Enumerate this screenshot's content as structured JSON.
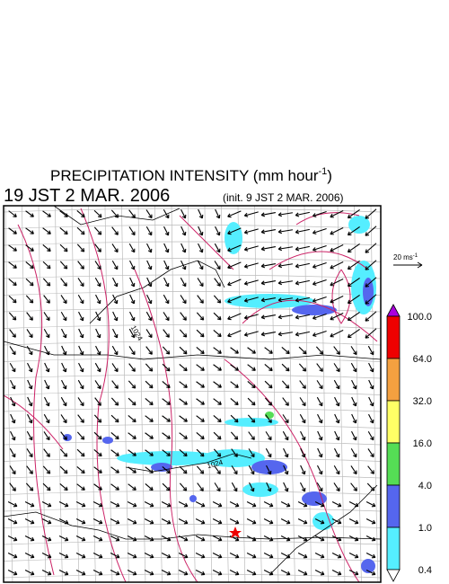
{
  "header": {
    "title": "PRECIPITATION INTENSITY (mm hour",
    "title_sup": "-1",
    "title_end": ")",
    "valid_time": "19 JST 2 MAR. 2006",
    "init_time": "(init. 9 JST 2 MAR. 2006)"
  },
  "wind_reference": {
    "label": "20 ms",
    "label_sup": "-1"
  },
  "colorbar": {
    "labels": [
      "100.0",
      "64.0",
      "32.0",
      "16.0",
      "4.0",
      "1.0",
      "0.4"
    ],
    "colors": [
      "#aa00dd",
      "#ee0000",
      "#f4a040",
      "#ffff66",
      "#55dd55",
      "#5566ee",
      "#55eeff",
      "#ffffff"
    ]
  },
  "map": {
    "contour_labels": [
      "1024",
      "1024"
    ]
  }
}
